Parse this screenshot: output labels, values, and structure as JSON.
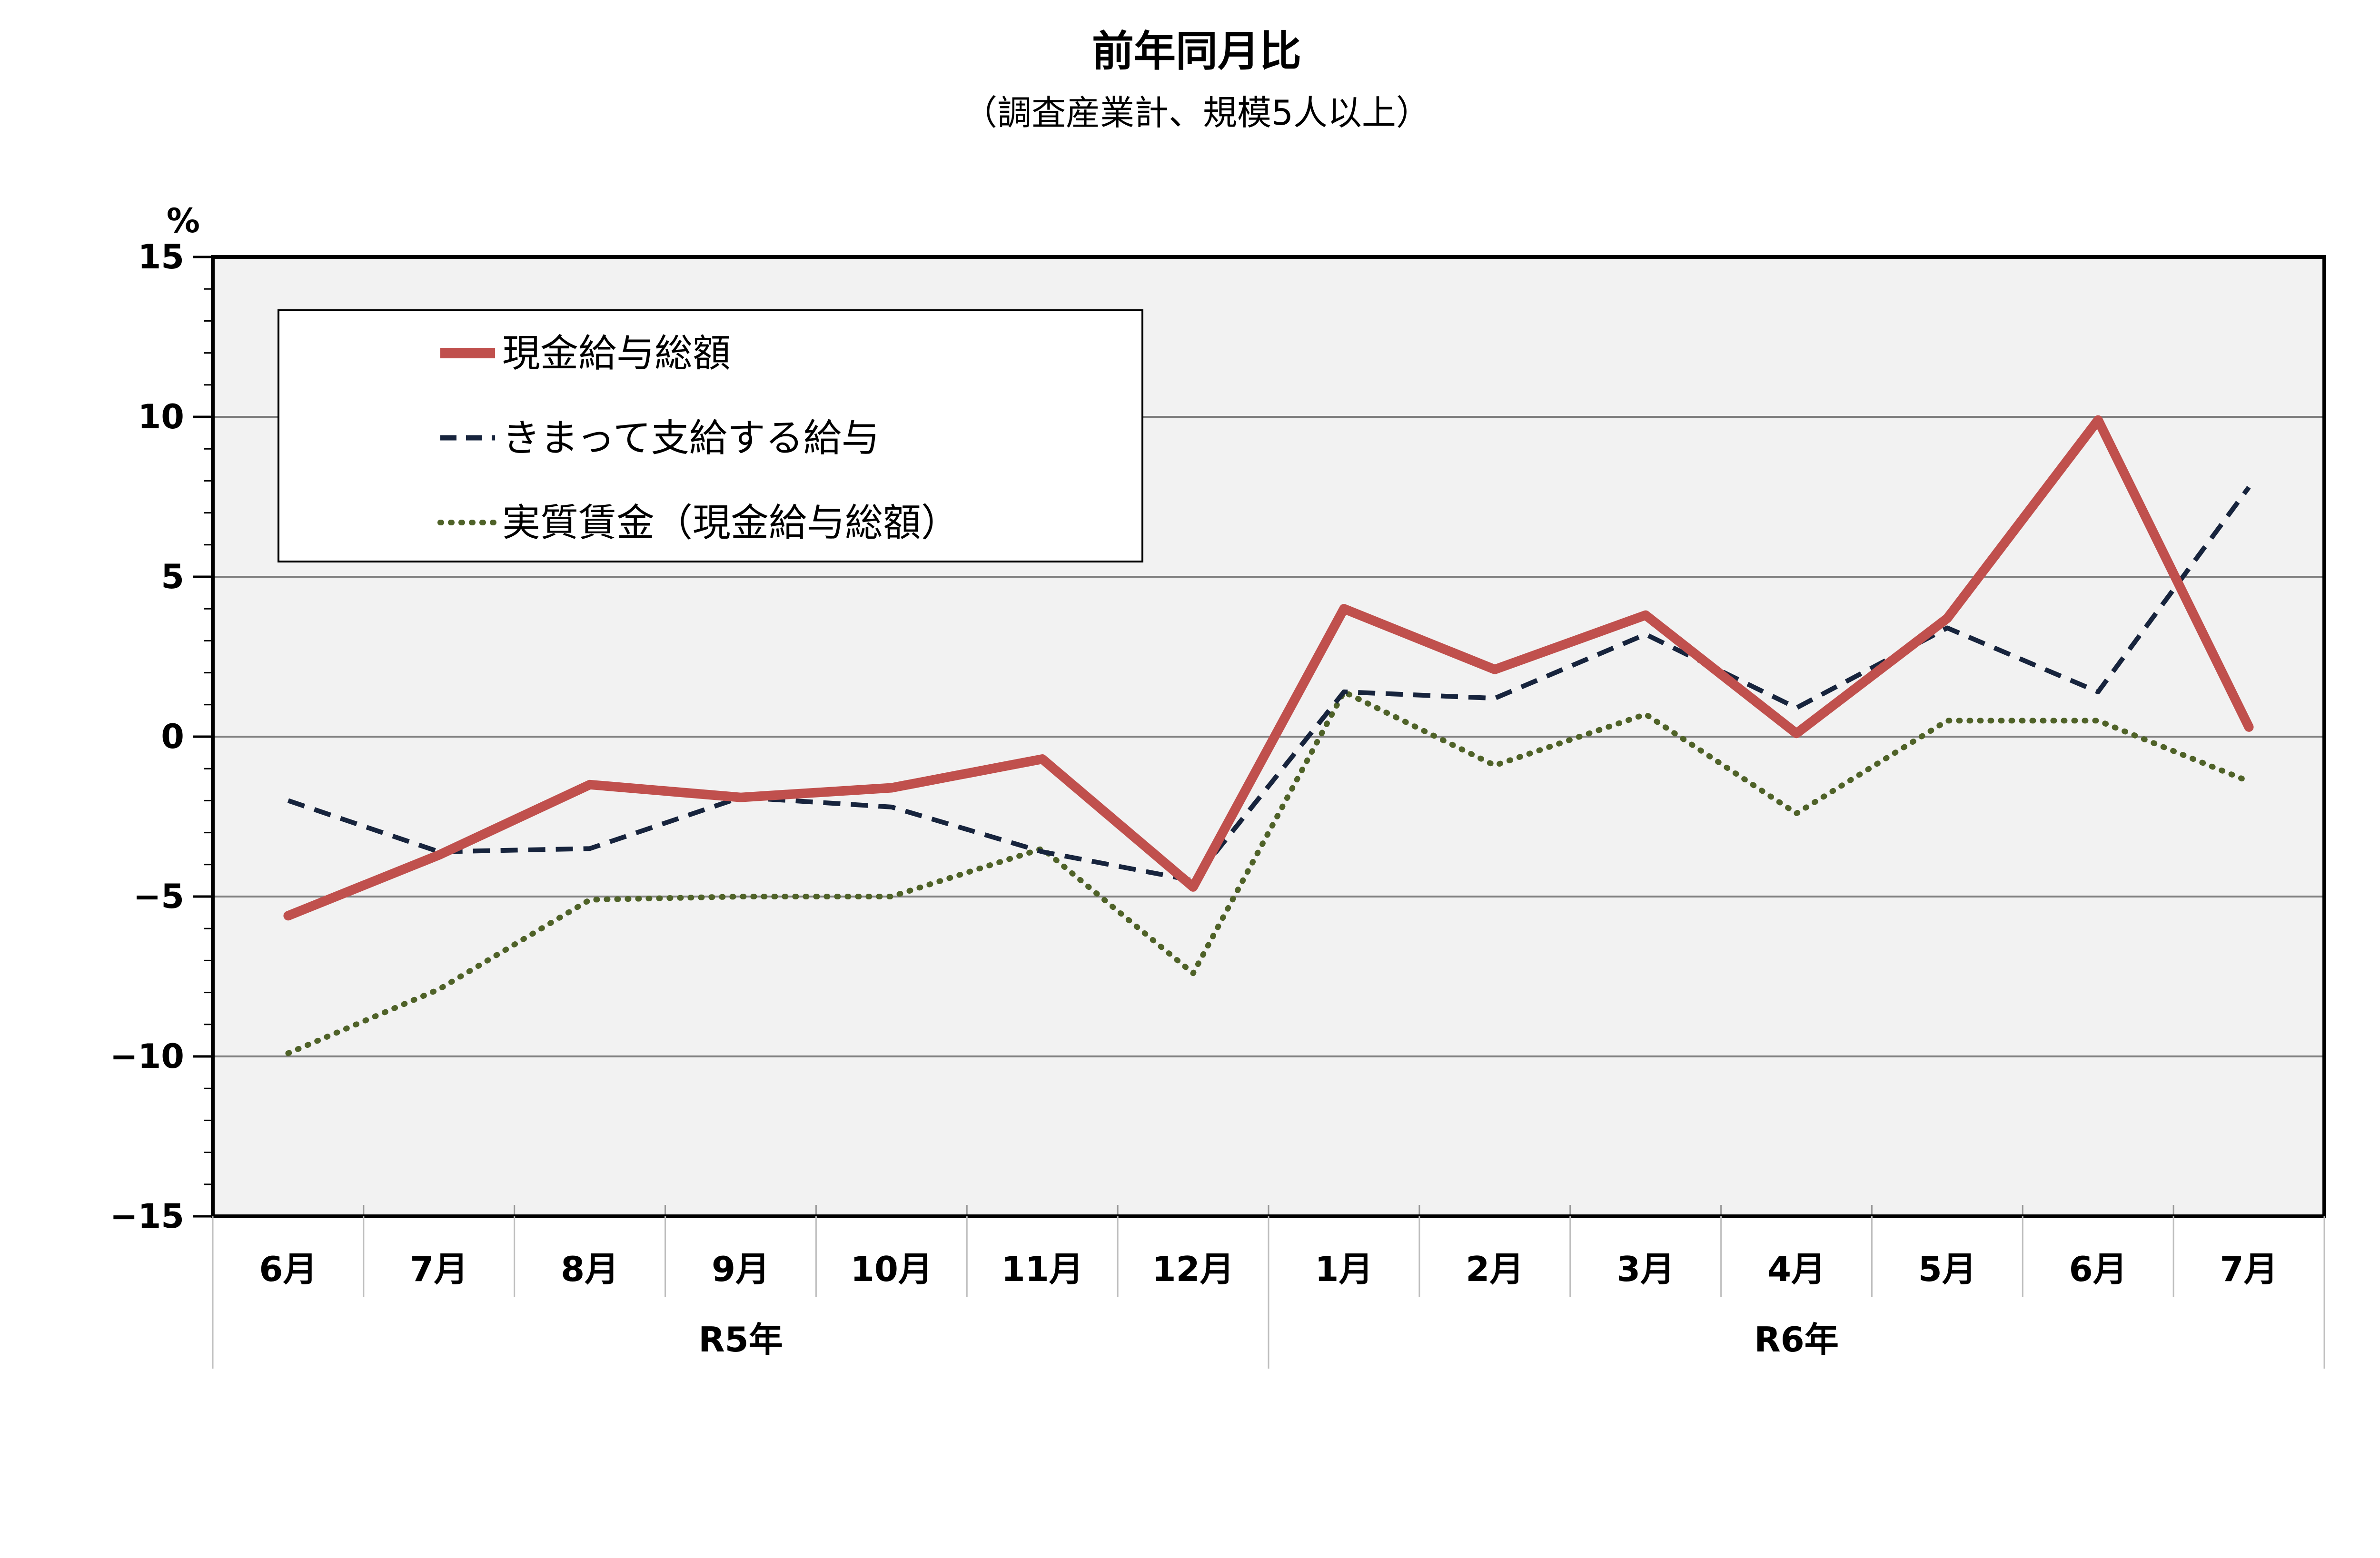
{
  "chart_data": {
    "type": "line",
    "title": "前年同月比",
    "subtitle": "（調査産業計、規模5人以上）",
    "ylabel": "%",
    "ylim": [
      -15,
      15
    ],
    "yticks": [
      15,
      10,
      5,
      0,
      -5,
      -10,
      -15
    ],
    "ytick_labels": [
      "15",
      "10",
      "5",
      "0",
      "−5",
      "−10",
      "−15"
    ],
    "categories": [
      "6月",
      "7月",
      "8月",
      "9月",
      "10月",
      "11月",
      "12月",
      "1月",
      "2月",
      "3月",
      "4月",
      "5月",
      "6月",
      "7月"
    ],
    "groups": [
      {
        "label": "R5年",
        "start": 0,
        "end": 6
      },
      {
        "label": "R6年",
        "start": 7,
        "end": 13
      }
    ],
    "grid": true,
    "legend_position": "top-left",
    "series": [
      {
        "name": "現金給与総額",
        "style": "solid",
        "color": "#c0504d",
        "values": [
          -5.6,
          -3.7,
          -1.5,
          -1.9,
          -1.6,
          -0.7,
          -4.7,
          4.0,
          2.1,
          3.8,
          0.1,
          3.7,
          9.9,
          0.3
        ]
      },
      {
        "name": "きまって支給する給与",
        "style": "dashed",
        "color": "#17243d",
        "values": [
          -2.0,
          -3.6,
          -3.5,
          -1.9,
          -2.2,
          -3.6,
          -4.5,
          1.4,
          1.2,
          3.2,
          0.9,
          3.4,
          1.4,
          7.8
        ]
      },
      {
        "name": "実質賃金（現金給与総額）",
        "style": "dotted",
        "color": "#4f6228",
        "values": [
          -9.9,
          -7.9,
          -5.1,
          -5.0,
          -5.0,
          -3.5,
          -7.4,
          1.4,
          -0.9,
          0.7,
          -2.4,
          0.5,
          0.5,
          -1.4
        ]
      }
    ]
  }
}
